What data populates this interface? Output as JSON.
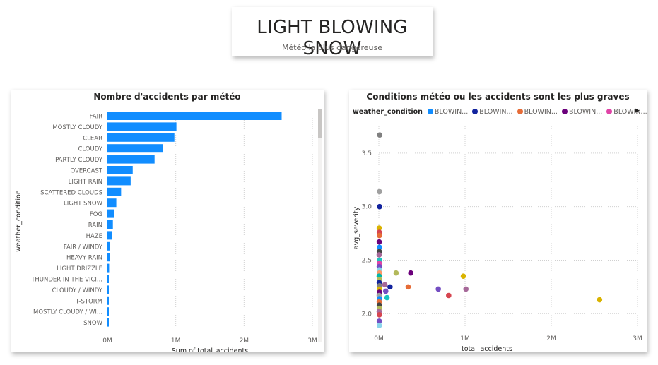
{
  "kpi": {
    "value": "LIGHT BLOWING SNOW",
    "label": "Météo la plus dangereuse"
  },
  "bar_visual": {
    "title": "Nombre d'accidents par météo"
  },
  "scatter_visual": {
    "title": "Conditions météo ou les accidents sont les plus graves",
    "legend_title": "weather_condition",
    "legend_items": [
      {
        "label": "BLOWIN...",
        "color": "#118dff"
      },
      {
        "label": "BLOWIN...",
        "color": "#12239e"
      },
      {
        "label": "BLOWIN...",
        "color": "#e66c37"
      },
      {
        "label": "BLOWIN...",
        "color": "#6b007b"
      },
      {
        "label": "BLOWIN...",
        "color": "#e044a7"
      }
    ],
    "legend_next_icon": "chevron-right-icon"
  },
  "chart_data": [
    {
      "type": "bar",
      "orientation": "horizontal",
      "title": "Nombre d'accidents par météo",
      "xlabel": "Sum of total_accidents",
      "ylabel": "weather_condition",
      "color": "#118dff",
      "categories": [
        "FAIR",
        "MOSTLY CLOUDY",
        "CLEAR",
        "CLOUDY",
        "PARTLY CLOUDY",
        "OVERCAST",
        "LIGHT RAIN",
        "SCATTERED CLOUDS",
        "LIGHT SNOW",
        "FOG",
        "RAIN",
        "HAZE",
        "FAIR / WINDY",
        "HEAVY RAIN",
        "LIGHT DRIZZLE",
        "THUNDER IN THE VICI...",
        "CLOUDY / WINDY",
        "T-STORM",
        "MOSTLY CLOUDY / WI...",
        "SNOW"
      ],
      "values": [
        2550000,
        1010000,
        980000,
        810000,
        690000,
        370000,
        340000,
        200000,
        130000,
        95000,
        80000,
        70000,
        40000,
        32000,
        25000,
        18000,
        16000,
        14000,
        12000,
        10000
      ],
      "xticks": [
        {
          "v": 0,
          "label": "0M"
        },
        {
          "v": 1000000,
          "label": "1M"
        },
        {
          "v": 2000000,
          "label": "2M"
        },
        {
          "v": 3000000,
          "label": "3M"
        }
      ],
      "xlim": [
        0,
        3000000
      ],
      "grid": "vertical-dotted"
    },
    {
      "type": "scatter",
      "title": "Conditions météo ou les accidents sont les plus graves",
      "xlabel": "total_accidents",
      "ylabel": "avg_severity",
      "xlim": [
        0,
        3000000
      ],
      "ylim": [
        1.85,
        3.75
      ],
      "xticks": [
        {
          "v": 0,
          "label": "0M"
        },
        {
          "v": 1000000,
          "label": "1M"
        },
        {
          "v": 2000000,
          "label": "2M"
        },
        {
          "v": 3000000,
          "label": "3M"
        }
      ],
      "yticks": [
        {
          "v": 2.0,
          "label": "2.0"
        },
        {
          "v": 2.5,
          "label": "2.5"
        },
        {
          "v": 3.0,
          "label": "3.0"
        },
        {
          "v": 3.5,
          "label": "3.5"
        }
      ],
      "grid": "dotted",
      "legend_position": "top-left",
      "points": [
        {
          "x": 2560000,
          "y": 2.13,
          "color": "#d9b300"
        },
        {
          "x": 980000,
          "y": 2.35,
          "color": "#d9b300"
        },
        {
          "x": 1010000,
          "y": 2.23,
          "color": "#a66999"
        },
        {
          "x": 810000,
          "y": 2.17,
          "color": "#d64550"
        },
        {
          "x": 690000,
          "y": 2.23,
          "color": "#744ec2"
        },
        {
          "x": 370000,
          "y": 2.38,
          "color": "#6b007b"
        },
        {
          "x": 340000,
          "y": 2.25,
          "color": "#e66c37"
        },
        {
          "x": 200000,
          "y": 2.38,
          "color": "#b3b95b"
        },
        {
          "x": 130000,
          "y": 2.25,
          "color": "#12239e"
        },
        {
          "x": 95000,
          "y": 2.15,
          "color": "#1ac4c1"
        },
        {
          "x": 80000,
          "y": 2.21,
          "color": "#744ec2"
        },
        {
          "x": 70000,
          "y": 2.27,
          "color": "#a66999"
        },
        {
          "x": 10000,
          "y": 3.67,
          "color": "#808080"
        },
        {
          "x": 8000,
          "y": 3.14,
          "color": "#a0a0a0"
        },
        {
          "x": 9000,
          "y": 3.0,
          "color": "#12239e"
        },
        {
          "x": 5000,
          "y": 2.8,
          "color": "#d9b300"
        },
        {
          "x": 6000,
          "y": 2.76,
          "color": "#d64550"
        },
        {
          "x": 7000,
          "y": 2.73,
          "color": "#e66c37"
        },
        {
          "x": 5000,
          "y": 2.67,
          "color": "#6b007b"
        },
        {
          "x": 8000,
          "y": 2.62,
          "color": "#118dff"
        },
        {
          "x": 6000,
          "y": 2.58,
          "color": "#444444"
        },
        {
          "x": 4000,
          "y": 2.55,
          "color": "#a66999"
        },
        {
          "x": 9000,
          "y": 2.5,
          "color": "#1ac4c1"
        },
        {
          "x": 7000,
          "y": 2.47,
          "color": "#e044a7"
        },
        {
          "x": 5000,
          "y": 2.44,
          "color": "#744ec2"
        },
        {
          "x": 6000,
          "y": 2.41,
          "color": "#8ad4eb"
        },
        {
          "x": 8000,
          "y": 2.38,
          "color": "#fe9666"
        },
        {
          "x": 4000,
          "y": 2.35,
          "color": "#01b8aa"
        },
        {
          "x": 7000,
          "y": 2.32,
          "color": "#b3b95b"
        },
        {
          "x": 5000,
          "y": 2.29,
          "color": "#12239e"
        },
        {
          "x": 9000,
          "y": 2.26,
          "color": "#808080"
        },
        {
          "x": 6000,
          "y": 2.23,
          "color": "#d9b300"
        },
        {
          "x": 8000,
          "y": 2.2,
          "color": "#6b007b"
        },
        {
          "x": 4000,
          "y": 2.17,
          "color": "#a0a0a0"
        },
        {
          "x": 7000,
          "y": 2.14,
          "color": "#118dff"
        },
        {
          "x": 5000,
          "y": 2.11,
          "color": "#e66c37"
        },
        {
          "x": 6000,
          "y": 2.08,
          "color": "#444444"
        },
        {
          "x": 8000,
          "y": 2.05,
          "color": "#b3b95b"
        },
        {
          "x": 4000,
          "y": 2.02,
          "color": "#a66999"
        },
        {
          "x": 7000,
          "y": 1.99,
          "color": "#d64550"
        },
        {
          "x": 5000,
          "y": 1.93,
          "color": "#744ec2"
        },
        {
          "x": 6000,
          "y": 1.89,
          "color": "#8ad4eb"
        }
      ]
    }
  ]
}
